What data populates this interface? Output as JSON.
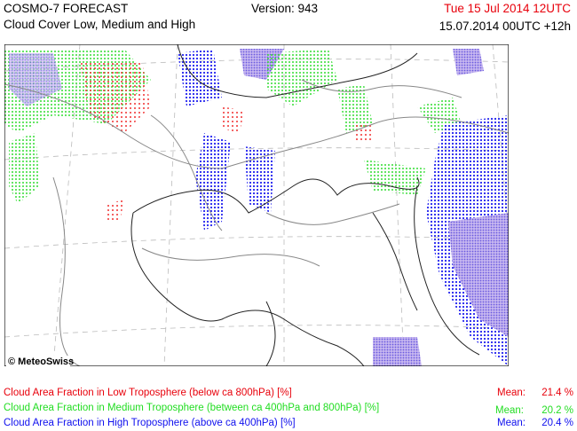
{
  "header": {
    "title": "COSMO-7 FORECAST",
    "subtitle": "Cloud Cover Low, Medium and High",
    "version": "Version: 943",
    "valid_time": "Tue 15 Jul 2014 12UTC",
    "run_time": "15.07.2014 00UTC +12h"
  },
  "map": {
    "copyright": "© MeteoSwiss"
  },
  "legend": [
    {
      "label": "Cloud Area Fraction in Low Troposphere (below ca 800hPa) [%]",
      "mean_label": "Mean:",
      "mean": "21.4 %"
    },
    {
      "label": "Cloud Area Fraction in Medium Troposphere (between ca 400hPa and 800hPa) [%]",
      "mean_label": "Mean:",
      "mean": "20.2 %"
    },
    {
      "label": "Cloud Area Fraction in High Troposphere (above ca 400hPa) [%]",
      "mean_label": "Mean:",
      "mean": "20.4 %"
    }
  ]
}
